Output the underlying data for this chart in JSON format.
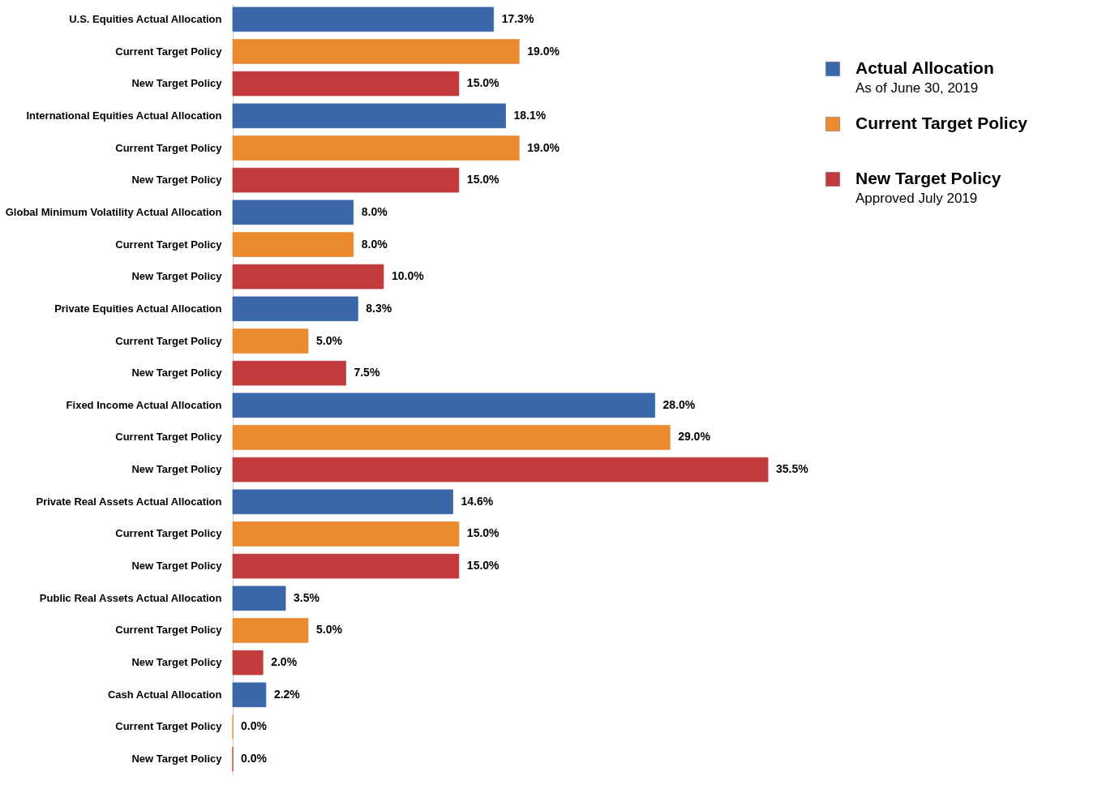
{
  "chart_data": {
    "type": "bar",
    "orientation": "horizontal",
    "legend": "right",
    "categories": [
      "U.S. Equities Actual Allocation",
      "Current Target Policy",
      "New Target Policy",
      "International Equities Actual Allocation",
      "Current Target Policy",
      "New Target Policy",
      "Global Minimum Volatility Actual Allocation",
      "Current Target Policy",
      "New Target Policy",
      "Private Equities Actual Allocation",
      "Current Target Policy",
      "New Target Policy",
      "Fixed Income Actual Allocation",
      "Current Target Policy",
      "New Target Policy",
      "Private Real Assets Actual Allocation",
      "Current Target Policy",
      "New Target Policy",
      "Public Real Assets Actual Allocation",
      "Current Target Policy",
      "New Target Policy",
      "Cash Actual Allocation",
      "Current Target Policy",
      "New Target Policy"
    ],
    "series": [
      {
        "name": "Actual Allocation",
        "color": "#3a67a9",
        "values": [
          17.3,
          null,
          null,
          18.1,
          null,
          null,
          8.0,
          null,
          null,
          8.3,
          null,
          null,
          28.0,
          null,
          null,
          14.6,
          null,
          null,
          3.5,
          null,
          null,
          2.2,
          null,
          null
        ],
        "value_labels": [
          "17.3%",
          null,
          null,
          "18.1%",
          null,
          null,
          "8.0%",
          null,
          null,
          "8.3%",
          null,
          null,
          "28.0%",
          null,
          null,
          "14.6%",
          null,
          null,
          "3.5%",
          null,
          null,
          "2.2%",
          null,
          null
        ]
      },
      {
        "name": "Current Target Policy",
        "color": "#ec8a30",
        "values": [
          null,
          19.0,
          null,
          null,
          19.0,
          null,
          null,
          8.0,
          null,
          null,
          5.0,
          null,
          null,
          29.0,
          null,
          null,
          15.0,
          null,
          null,
          5.0,
          null,
          null,
          0.0,
          null
        ],
        "value_labels": [
          null,
          "19.0%",
          null,
          null,
          "19.0%",
          null,
          null,
          "8.0%",
          null,
          null,
          "5.0%",
          null,
          null,
          "29.0%",
          null,
          null,
          "15.0%",
          null,
          null,
          "5.0%",
          null,
          null,
          "0.0%",
          null
        ]
      },
      {
        "name": "New Target Policy",
        "color": "#c13a3c",
        "values": [
          null,
          null,
          15.0,
          null,
          null,
          15.0,
          null,
          null,
          10.0,
          null,
          null,
          7.5,
          null,
          null,
          35.5,
          null,
          null,
          15.0,
          null,
          null,
          2.0,
          null,
          null,
          0.0
        ],
        "value_labels": [
          null,
          null,
          "15.0%",
          null,
          null,
          "15.0%",
          null,
          null,
          "10.0%",
          null,
          null,
          "7.5%",
          null,
          null,
          "35.5%",
          null,
          null,
          "15.0%",
          null,
          null,
          "2.0%",
          null,
          null,
          "0.0%"
        ]
      }
    ],
    "annotations": [
      "As of June 30, 2019",
      "Approved July 2019"
    ]
  }
}
